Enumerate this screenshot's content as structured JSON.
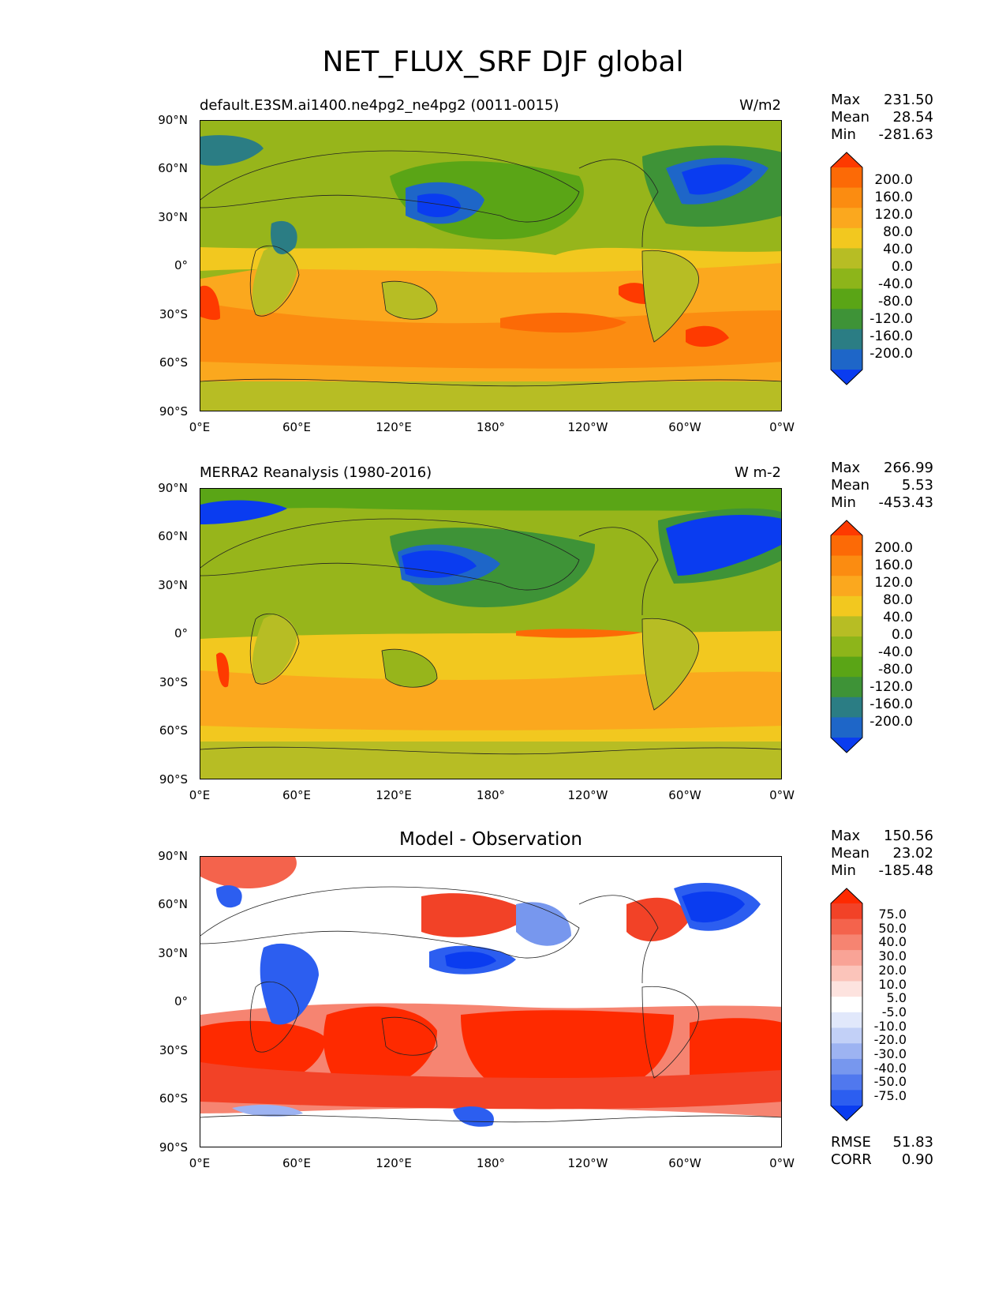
{
  "figure": {
    "title": "NET_FLUX_SRF DJF global"
  },
  "lat_ticks": [
    "90°N",
    "60°N",
    "30°N",
    "0°",
    "30°S",
    "60°S",
    "90°S"
  ],
  "lon_ticks": [
    "0°E",
    "60°E",
    "120°E",
    "180°",
    "120°W",
    "60°W",
    "0°W"
  ],
  "colors": {
    "abs_levels": [
      "#0a3cf0",
      "#1e66c8",
      "#2b7d84",
      "#3e9337",
      "#5aa516",
      "#8db51a",
      "#b7bd24",
      "#f2c81f",
      "#fba81e",
      "#fb8c11",
      "#fc6a06",
      "#fe3a00"
    ],
    "diff_levels": [
      "#0a3cf0",
      "#2c5ef0",
      "#5078ee",
      "#7797ee",
      "#9db3f2",
      "#c2d0f7",
      "#e1e8fb",
      "#ffffff",
      "#fde3df",
      "#fbc4ba",
      "#f9a396",
      "#f68471",
      "#f4634c",
      "#f24227",
      "#fe2a00"
    ]
  },
  "panels": [
    {
      "title": "default.E3SM.ai1400.ne4pg2_ne4pg2 (0011-0015)",
      "units": "W/m2",
      "stats": {
        "max_label": "Max",
        "max": "231.50",
        "mean_label": "Mean",
        "mean": "28.54",
        "min_label": "Min",
        "min": "-281.63"
      },
      "colorbar": [
        "200.0",
        "160.0",
        "120.0",
        "80.0",
        "40.0",
        "0.0",
        "-40.0",
        "-80.0",
        "-120.0",
        "-160.0",
        "-200.0"
      ]
    },
    {
      "title": "MERRA2 Reanalysis (1980-2016)",
      "units": "W m-2",
      "stats": {
        "max_label": "Max",
        "max": "266.99",
        "mean_label": "Mean",
        "mean": "5.53",
        "min_label": "Min",
        "min": "-453.43"
      },
      "colorbar": [
        "200.0",
        "160.0",
        "120.0",
        "80.0",
        "40.0",
        "0.0",
        "-40.0",
        "-80.0",
        "-120.0",
        "-160.0",
        "-200.0"
      ]
    },
    {
      "title": "Model - Observation",
      "units": "",
      "stats": {
        "max_label": "Max",
        "max": "150.56",
        "mean_label": "Mean",
        "mean": "23.02",
        "min_label": "Min",
        "min": "-185.48"
      },
      "colorbar": [
        "75.0",
        "50.0",
        "40.0",
        "30.0",
        "20.0",
        "10.0",
        "5.0",
        "-5.0",
        "-10.0",
        "-20.0",
        "-30.0",
        "-40.0",
        "-50.0",
        "-75.0"
      ],
      "extra_stats": {
        "rmse_label": "RMSE",
        "rmse": "51.83",
        "corr_label": "CORR",
        "corr": "0.90"
      }
    }
  ]
}
